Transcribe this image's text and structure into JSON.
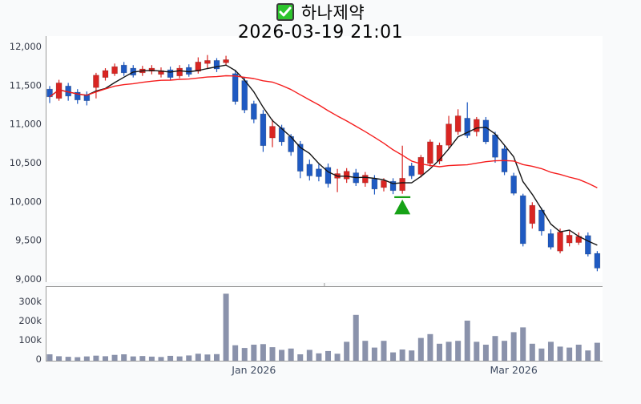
{
  "header": {
    "title": "하나제약",
    "subtitle": "2026-03-19 21:01",
    "checkbox_checked": true,
    "checkbox_color": "#2dc52d",
    "checkmark_color": "#ffffff"
  },
  "colors": {
    "page_bg": "#f9fafb",
    "plot_bg": "#ffffff",
    "axis": "#9a9a9a",
    "y_label": "#373c4a",
    "x_label": "#3e4a60",
    "candle_up": "#d92522",
    "candle_down": "#1f5ac2",
    "ma_fast": "#141414",
    "ma_slow": "#f51d1d",
    "volume_bar": "#8a92ab",
    "marker": "#16a216"
  },
  "chart_data": [
    {
      "type": "candlestick",
      "name": "price-chart",
      "title": "하나제약",
      "ylim": [
        8950,
        12100
      ],
      "grid": false,
      "y_ticks": [
        {
          "label": "12,000",
          "value": 12000
        },
        {
          "label": "11,500",
          "value": 11500
        },
        {
          "label": "11,000",
          "value": 11000
        },
        {
          "label": "10,500",
          "value": 10500
        },
        {
          "label": "10,000",
          "value": 10000
        },
        {
          "label": "9,500",
          "value": 9500
        },
        {
          "label": "9,000",
          "value": 9000
        }
      ],
      "overlays": [
        {
          "name": "ma-fast",
          "period": 5,
          "color_key": "ma_fast"
        },
        {
          "name": "ma-slow",
          "period": 20,
          "color_key": "ma_slow"
        }
      ],
      "marker": {
        "index": 38,
        "price": 10000,
        "shape": "triangle-up",
        "meaning": "buy-signal"
      },
      "candles_ohlc": [
        [
          11450,
          11490,
          11270,
          11350
        ],
        [
          11330,
          11570,
          11300,
          11530
        ],
        [
          11490,
          11530,
          11300,
          11360
        ],
        [
          11410,
          11450,
          11260,
          11310
        ],
        [
          11380,
          11420,
          11240,
          11300
        ],
        [
          11470,
          11660,
          11330,
          11630
        ],
        [
          11600,
          11720,
          11560,
          11690
        ],
        [
          11650,
          11780,
          11620,
          11740
        ],
        [
          11760,
          11800,
          11620,
          11660
        ],
        [
          11720,
          11760,
          11600,
          11630
        ],
        [
          11660,
          11750,
          11620,
          11710
        ],
        [
          11680,
          11760,
          11640,
          11720
        ],
        [
          11640,
          11730,
          11600,
          11690
        ],
        [
          11700,
          11740,
          11560,
          11600
        ],
        [
          11620,
          11760,
          11590,
          11720
        ],
        [
          11730,
          11770,
          11610,
          11640
        ],
        [
          11680,
          11860,
          11650,
          11800
        ],
        [
          11780,
          11890,
          11720,
          11820
        ],
        [
          11820,
          11850,
          11670,
          11710
        ],
        [
          11790,
          11880,
          11750,
          11830
        ],
        [
          11650,
          11700,
          11250,
          11290
        ],
        [
          11560,
          11600,
          11140,
          11180
        ],
        [
          11260,
          11300,
          11010,
          11060
        ],
        [
          11130,
          11180,
          10640,
          10720
        ],
        [
          10820,
          11060,
          10700,
          10970
        ],
        [
          10950,
          10990,
          10720,
          10770
        ],
        [
          10840,
          10870,
          10590,
          10640
        ],
        [
          10740,
          10780,
          10300,
          10390
        ],
        [
          10480,
          10540,
          10270,
          10330
        ],
        [
          10420,
          10480,
          10260,
          10320
        ],
        [
          10440,
          10490,
          10180,
          10230
        ],
        [
          10300,
          10420,
          10120,
          10360
        ],
        [
          10290,
          10430,
          10240,
          10390
        ],
        [
          10370,
          10420,
          10200,
          10240
        ],
        [
          10240,
          10380,
          10190,
          10340
        ],
        [
          10290,
          10340,
          10090,
          10160
        ],
        [
          10180,
          10300,
          10130,
          10270
        ],
        [
          10260,
          10300,
          10095,
          10140
        ],
        [
          10140,
          10720,
          10100,
          10300
        ],
        [
          10460,
          10500,
          10290,
          10330
        ],
        [
          10350,
          10600,
          10310,
          10570
        ],
        [
          10490,
          10800,
          10450,
          10770
        ],
        [
          10520,
          10760,
          10480,
          10725
        ],
        [
          10725,
          11105,
          10680,
          11000
        ],
        [
          10900,
          11190,
          10860,
          11105
        ],
        [
          11075,
          11280,
          10820,
          10850
        ],
        [
          10900,
          11090,
          10840,
          11060
        ],
        [
          11050,
          11090,
          10740,
          10770
        ],
        [
          10860,
          10900,
          10500,
          10570
        ],
        [
          10680,
          10720,
          10340,
          10380
        ],
        [
          10330,
          10370,
          10080,
          10105
        ],
        [
          10075,
          10100,
          9420,
          9455
        ],
        [
          9715,
          9990,
          9650,
          9950
        ],
        [
          9890,
          9920,
          9560,
          9620
        ],
        [
          9585,
          9640,
          9380,
          9410
        ],
        [
          9360,
          9650,
          9330,
          9605
        ],
        [
          9465,
          9620,
          9420,
          9565
        ],
        [
          9470,
          9600,
          9440,
          9550
        ],
        [
          9560,
          9600,
          9290,
          9320
        ],
        [
          9330,
          9360,
          9100,
          9140
        ]
      ]
    },
    {
      "type": "bar",
      "name": "volume-chart",
      "ylabel": "",
      "ylim_k": [
        0,
        380
      ],
      "y_ticks": [
        {
          "label": "300k",
          "value": 300
        },
        {
          "label": "200k",
          "value": 200
        },
        {
          "label": "100k",
          "value": 100
        },
        {
          "label": "0",
          "value": 0
        }
      ],
      "x_labels": [
        {
          "label": "Jan 2026",
          "index": 22
        },
        {
          "label": "Mar 2026",
          "index": 50
        }
      ],
      "top_axis_ticks": [
        {
          "index": 29.6
        }
      ],
      "values_k": [
        25,
        15,
        12,
        10,
        14,
        18,
        15,
        22,
        25,
        14,
        16,
        13,
        11,
        17,
        14,
        19,
        28,
        24,
        26,
        340,
        72,
        58,
        75,
        78,
        62,
        48,
        55,
        25,
        48,
        30,
        42,
        28,
        90,
        230,
        95,
        60,
        95,
        35,
        50,
        45,
        110,
        130,
        80,
        90,
        95,
        200,
        90,
        75,
        120,
        95,
        140,
        165,
        80,
        55,
        90,
        65,
        60,
        75,
        45,
        85
      ]
    }
  ]
}
